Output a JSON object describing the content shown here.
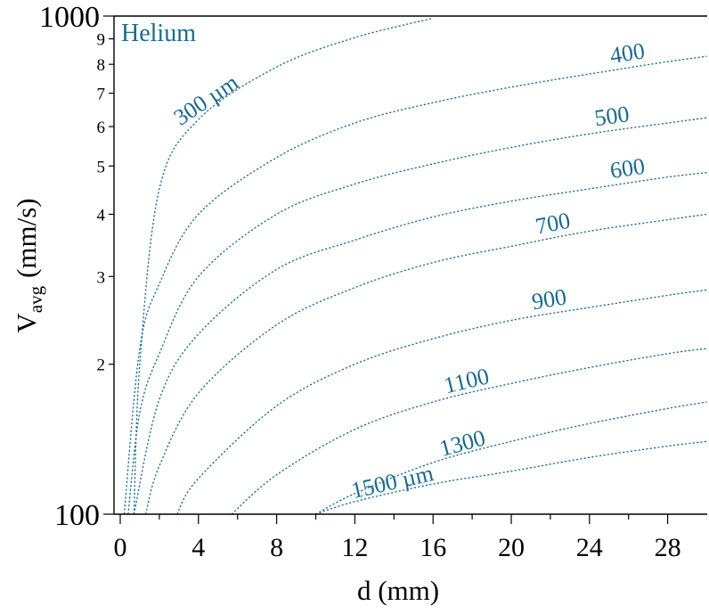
{
  "chart_data": {
    "type": "line",
    "title": "",
    "annotation": "Helium",
    "xlabel": "d (mm)",
    "ylabel_main": "V",
    "ylabel_sub": "avg",
    "ylabel_unit": "(mm/s)",
    "x_scale": "linear",
    "y_scale": "log",
    "xlim": [
      0,
      30
    ],
    "ylim": [
      100,
      1000
    ],
    "x_ticks": [
      0,
      4,
      8,
      12,
      16,
      20,
      24,
      28
    ],
    "x_tick_labels": [
      "0",
      "4",
      "8",
      "12",
      "16",
      "20",
      "24",
      "28"
    ],
    "y_major_ticks": [
      100,
      1000
    ],
    "y_major_tick_labels": [
      "100",
      "1000"
    ],
    "y_minor_ticks": [
      200,
      300,
      400,
      500,
      600,
      700,
      800,
      900
    ],
    "y_minor_tick_labels": [
      "2",
      "3",
      "4",
      "5",
      "6",
      "7",
      "8",
      "9"
    ],
    "grid": false,
    "line_style": "dotted",
    "color": "#1a6a8f",
    "series": [
      {
        "name": "300 µm",
        "x": [
          0.7,
          1.0,
          2.0,
          4.0,
          8.0,
          12.0,
          16.0
        ],
        "y": [
          100,
          200,
          450,
          620,
          790,
          905,
          990
        ]
      },
      {
        "name": "400",
        "x": [
          0.2,
          1.0,
          2.0,
          4.0,
          8.0,
          12.0,
          16.0,
          20.0,
          24.0,
          28.0,
          30.0
        ],
        "y": [
          100,
          215,
          290,
          400,
          520,
          610,
          670,
          720,
          765,
          810,
          830
        ]
      },
      {
        "name": "500",
        "x": [
          0.4,
          1.0,
          2.0,
          4.0,
          8.0,
          12.0,
          16.0,
          20.0,
          24.0,
          28.0,
          30.0
        ],
        "y": [
          100,
          160,
          210,
          300,
          400,
          460,
          505,
          545,
          580,
          610,
          625
        ]
      },
      {
        "name": "600",
        "x": [
          0.7,
          2.0,
          4.0,
          8.0,
          12.0,
          16.0,
          20.0,
          24.0,
          28.0,
          30.0
        ],
        "y": [
          100,
          170,
          230,
          310,
          355,
          395,
          425,
          450,
          475,
          485
        ]
      },
      {
        "name": "700",
        "x": [
          1.3,
          2.0,
          4.0,
          8.0,
          12.0,
          16.0,
          20.0,
          24.0,
          28.0,
          30.0
        ],
        "y": [
          100,
          125,
          175,
          240,
          285,
          320,
          345,
          370,
          390,
          400
        ]
      },
      {
        "name": "900",
        "x": [
          2.9,
          4.0,
          8.0,
          12.0,
          16.0,
          20.0,
          24.0,
          28.0,
          30.0
        ],
        "y": [
          100,
          118,
          165,
          200,
          225,
          245,
          260,
          275,
          282
        ]
      },
      {
        "name": "1100",
        "x": [
          5.7,
          8.0,
          12.0,
          16.0,
          20.0,
          24.0,
          28.0,
          30.0
        ],
        "y": [
          100,
          120,
          148,
          168,
          183,
          197,
          210,
          215
        ]
      },
      {
        "name": "1300",
        "x": [
          10.0,
          12.0,
          16.0,
          20.0,
          24.0,
          28.0,
          30.0
        ],
        "y": [
          100,
          110,
          127,
          140,
          152,
          163,
          168
        ]
      },
      {
        "name": "1500 µm",
        "x": [
          10.0,
          12.0,
          16.0,
          20.0,
          24.0,
          28.0,
          30.0
        ],
        "y": [
          100,
          106,
          115,
          122,
          130,
          137,
          140
        ]
      }
    ]
  }
}
